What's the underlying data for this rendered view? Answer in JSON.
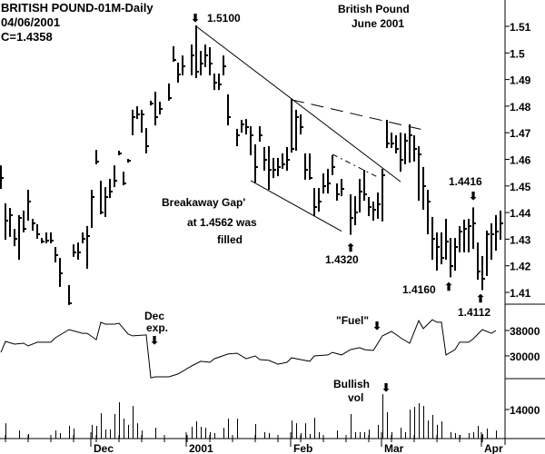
{
  "header": {
    "title": "BRITISH POUND-01M-Daily",
    "date": "04/06/2001",
    "close": "C=1.4358",
    "subtitle_line1": "British Pound",
    "subtitle_line2": "June 2001"
  },
  "annotations": {
    "peak": "1.5100",
    "gap_line1": "Breakaway Gap'",
    "gap_line2": "at 1.4562 was",
    "gap_line3": "filled",
    "low1": "1.4320",
    "high2": "1.4416",
    "low2": "1.4160",
    "low3": "1.4112",
    "dec_exp_line1": "Dec",
    "dec_exp_line2": "exp.",
    "fuel": "\"Fuel\"",
    "bullish_line1": "Bullish",
    "bullish_line2": "vol"
  },
  "chart_data": {
    "type": "ohlc-bar",
    "colors": {
      "bars": "#000000",
      "background": "#ffffff"
    },
    "grid": false,
    "price_axis": {
      "ticks": [
        "1.41",
        "1.42",
        "1.43",
        "1.44",
        "1.45",
        "1.46",
        "1.47",
        "1.48",
        "1.49",
        "1.5",
        "1.51"
      ],
      "ylim": [
        1.403,
        1.52
      ]
    },
    "oi_axis": {
      "ticks": [
        "30000",
        "38000"
      ]
    },
    "volume_axis": {
      "ticks": [
        "14000"
      ]
    },
    "x_ticks": [
      {
        "date": "2000-12-01",
        "label": "Dec"
      },
      {
        "date": "2001-01-01",
        "label": "2001"
      },
      {
        "date": "2001-02-01",
        "label": "Feb"
      },
      {
        "date": "2001-03-01",
        "label": "Mar"
      },
      {
        "date": "2001-04-02",
        "label": "Apr"
      }
    ],
    "bars_columns": [
      "date",
      "high",
      "low",
      "close"
    ],
    "bars": [
      [
        "2000-11-03",
        1.4574,
        1.4492,
        1.453
      ],
      [
        "2000-11-06",
        1.4431,
        1.4301,
        1.437
      ],
      [
        "2000-11-07",
        1.4414,
        1.4312,
        1.439
      ],
      [
        "2000-11-08",
        1.4335,
        1.4277,
        1.43
      ],
      [
        "2000-11-09",
        1.4387,
        1.4226,
        1.438
      ],
      [
        "2000-11-10",
        1.4404,
        1.4329,
        1.434
      ],
      [
        "2000-11-13",
        1.4482,
        1.4373,
        1.444
      ],
      [
        "2000-11-14",
        1.4373,
        1.4335,
        1.436
      ],
      [
        "2000-11-15",
        1.4353,
        1.4305,
        1.432
      ],
      [
        "2000-11-16",
        1.4301,
        1.4288,
        1.429
      ],
      [
        "2000-11-17",
        1.4322,
        1.4288,
        1.4295
      ],
      [
        "2000-11-20",
        1.4322,
        1.4288,
        1.4295
      ],
      [
        "2000-11-21",
        1.4267,
        1.4216,
        1.424
      ],
      [
        "2000-11-22",
        1.4226,
        1.4124,
        1.417
      ],
      [
        "2000-11-24",
        1.4124,
        1.4056,
        1.406
      ],
      [
        "2000-11-27",
        1.4277,
        1.4237,
        1.425
      ],
      [
        "2000-11-28",
        1.4284,
        1.4226,
        1.425
      ],
      [
        "2000-11-29",
        1.4322,
        1.4288,
        1.43
      ],
      [
        "2000-11-30",
        1.4346,
        1.4192,
        1.431
      ],
      [
        "2000-12-01",
        1.4482,
        1.4346,
        1.446
      ],
      [
        "2000-12-04",
        1.4632,
        1.4585,
        1.459
      ],
      [
        "2000-12-05",
        1.4516,
        1.4397,
        1.44
      ],
      [
        "2000-12-06",
        1.4492,
        1.4387,
        1.446
      ],
      [
        "2000-12-07",
        1.4523,
        1.4458,
        1.448
      ],
      [
        "2000-12-08",
        1.4574,
        1.4499,
        1.452
      ],
      [
        "2000-12-11",
        1.4629,
        1.4619,
        1.4622
      ],
      [
        "2000-12-12",
        1.455,
        1.4506,
        1.451
      ],
      [
        "2000-12-13",
        1.4598,
        1.4591,
        1.4595
      ],
      [
        "2000-12-14",
        1.4783,
        1.4694,
        1.476
      ],
      [
        "2000-12-15",
        1.4796,
        1.4755,
        1.477
      ],
      [
        "2000-12-18",
        1.4783,
        1.4704,
        1.477
      ],
      [
        "2000-12-19",
        1.4714,
        1.4626,
        1.465
      ],
      [
        "2000-12-20",
        1.4817,
        1.4806,
        1.481
      ],
      [
        "2000-12-21",
        1.4851,
        1.4731,
        1.476
      ],
      [
        "2000-12-22",
        1.4813,
        1.4772,
        1.479
      ],
      [
        "2000-12-26",
        1.4882,
        1.4824,
        1.483
      ],
      [
        "2000-12-27",
        1.5022,
        1.497,
        1.4975
      ],
      [
        "2000-12-28",
        1.496,
        1.4892,
        1.492
      ],
      [
        "2000-12-29",
        1.4987,
        1.4919,
        1.495
      ],
      [
        "2001-01-02",
        1.5028,
        1.4919,
        1.499
      ],
      [
        "2001-01-03",
        1.51,
        1.4909,
        1.493
      ],
      [
        "2001-01-04",
        1.5004,
        1.4919,
        1.496
      ],
      [
        "2001-01-05",
        1.5028,
        1.495,
        1.499
      ],
      [
        "2001-01-08",
        1.5018,
        1.4919,
        1.496
      ],
      [
        "2001-01-09",
        1.4919,
        1.4864,
        1.489
      ],
      [
        "2001-01-10",
        1.4919,
        1.4864,
        1.488
      ],
      [
        "2001-01-11",
        1.4987,
        1.4919,
        1.495
      ],
      [
        "2001-01-12",
        1.4841,
        1.4731,
        1.476
      ],
      [
        "2001-01-16",
        1.4711,
        1.4653,
        1.469
      ],
      [
        "2001-01-17",
        1.4745,
        1.4704,
        1.473
      ],
      [
        "2001-01-18",
        1.4748,
        1.4697,
        1.472
      ],
      [
        "2001-01-19",
        1.4721,
        1.4619,
        1.469
      ],
      [
        "2001-01-22",
        1.4653,
        1.4516,
        1.457
      ],
      [
        "2001-01-23",
        1.4721,
        1.467,
        1.469
      ],
      [
        "2001-01-24",
        1.4643,
        1.4561,
        1.46
      ],
      [
        "2001-01-25",
        1.4646,
        1.4489,
        1.456
      ],
      [
        "2001-01-26",
        1.4602,
        1.4533,
        1.456
      ],
      [
        "2001-01-29",
        1.4602,
        1.454,
        1.457
      ],
      [
        "2001-01-30",
        1.4619,
        1.4568,
        1.458
      ],
      [
        "2001-01-31",
        1.4643,
        1.4561,
        1.46
      ],
      [
        "2001-02-01",
        1.4824,
        1.4629,
        1.464
      ],
      [
        "2001-02-02",
        1.4783,
        1.4636,
        1.476
      ],
      [
        "2001-02-05",
        1.4766,
        1.4697,
        1.472
      ],
      [
        "2001-02-06",
        1.4619,
        1.4527,
        1.456
      ],
      [
        "2001-02-07",
        1.4619,
        1.4527,
        1.453
      ],
      [
        "2001-02-08",
        1.4489,
        1.439,
        1.442
      ],
      [
        "2001-02-09",
        1.4489,
        1.4407,
        1.444
      ],
      [
        "2001-02-12",
        1.4544,
        1.4475,
        1.45
      ],
      [
        "2001-02-13",
        1.4561,
        1.4475,
        1.451
      ],
      [
        "2001-02-14",
        1.4612,
        1.4544,
        1.457
      ],
      [
        "2001-02-15",
        1.4506,
        1.4448,
        1.447
      ],
      [
        "2001-02-16",
        1.4523,
        1.4465,
        1.449
      ],
      [
        "2001-02-20",
        1.4465,
        1.432,
        1.438
      ],
      [
        "2001-02-21",
        1.4458,
        1.4356,
        1.44
      ],
      [
        "2001-02-22",
        1.4523,
        1.4404,
        1.448
      ],
      [
        "2001-02-23",
        1.4557,
        1.4448,
        1.447
      ],
      [
        "2001-02-26",
        1.4455,
        1.439,
        1.442
      ],
      [
        "2001-02-27",
        1.4438,
        1.4373,
        1.441
      ],
      [
        "2001-02-28",
        1.4472,
        1.438,
        1.443
      ],
      [
        "2001-03-01",
        1.4561,
        1.437,
        1.454
      ],
      [
        "2001-03-02",
        1.4745,
        1.4646,
        1.466
      ],
      [
        "2001-03-05",
        1.4697,
        1.4646,
        1.466
      ],
      [
        "2001-03-06",
        1.4687,
        1.4626,
        1.464
      ],
      [
        "2001-03-07",
        1.4697,
        1.4557,
        1.46
      ],
      [
        "2001-03-08",
        1.4694,
        1.4585,
        1.467
      ],
      [
        "2001-03-09",
        1.4728,
        1.4591,
        1.469
      ],
      [
        "2001-03-12",
        1.4687,
        1.4595,
        1.464
      ],
      [
        "2001-03-13",
        1.4646,
        1.4448,
        1.462
      ],
      [
        "2001-03-14",
        1.4568,
        1.4414,
        1.45
      ],
      [
        "2001-03-15",
        1.4482,
        1.4322,
        1.444
      ],
      [
        "2001-03-16",
        1.438,
        1.4226,
        1.43
      ],
      [
        "2001-03-19",
        1.4322,
        1.4185,
        1.427
      ],
      [
        "2001-03-20",
        1.4322,
        1.4209,
        1.423
      ],
      [
        "2001-03-21",
        1.4373,
        1.4226,
        1.429
      ],
      [
        "2001-03-22",
        1.4301,
        1.416,
        1.42
      ],
      [
        "2001-03-23",
        1.4301,
        1.4185,
        1.427
      ],
      [
        "2001-03-26",
        1.4346,
        1.4254,
        1.433
      ],
      [
        "2001-03-27",
        1.437,
        1.4254,
        1.434
      ],
      [
        "2001-03-28",
        1.4373,
        1.4254,
        1.435
      ],
      [
        "2001-03-29",
        1.4416,
        1.4267,
        1.436
      ],
      [
        "2001-03-30",
        1.4284,
        1.4151,
        1.418
      ],
      [
        "2001-04-02",
        1.4233,
        1.4112,
        1.415
      ],
      [
        "2001-04-03",
        1.4329,
        1.4165,
        1.432
      ],
      [
        "2001-04-04",
        1.4356,
        1.4226,
        1.432
      ],
      [
        "2001-04-05",
        1.4387,
        1.426,
        1.433
      ],
      [
        "2001-04-06",
        1.4404,
        1.4301,
        1.4358
      ]
    ],
    "open_interest": [
      [
        "2000-11-03",
        31100
      ],
      [
        "2000-11-06",
        34570
      ],
      [
        "2000-11-08",
        33700
      ],
      [
        "2000-11-10",
        34000
      ],
      [
        "2000-11-13",
        33140
      ],
      [
        "2000-11-15",
        34300
      ],
      [
        "2000-11-20",
        34300
      ],
      [
        "2000-11-21",
        35700
      ],
      [
        "2000-11-24",
        38300
      ],
      [
        "2000-11-29",
        37100
      ],
      [
        "2000-11-30",
        37100
      ],
      [
        "2000-12-04",
        35100
      ],
      [
        "2000-12-05",
        40600
      ],
      [
        "2000-12-06",
        40000
      ],
      [
        "2000-12-08",
        40000
      ],
      [
        "2000-12-11",
        40300
      ],
      [
        "2000-12-13",
        36900
      ],
      [
        "2000-12-14",
        36300
      ],
      [
        "2000-12-19",
        36600
      ],
      [
        "2000-12-20",
        23100
      ],
      [
        "2000-12-21",
        23400
      ],
      [
        "2000-12-26",
        23400
      ],
      [
        "2000-12-28",
        24300
      ],
      [
        "2001-01-02",
        26850
      ],
      [
        "2001-01-04",
        28300
      ],
      [
        "2001-01-08",
        28000
      ],
      [
        "2001-01-09",
        29100
      ],
      [
        "2001-01-12",
        30600
      ],
      [
        "2001-01-16",
        30850
      ],
      [
        "2001-01-18",
        29100
      ],
      [
        "2001-01-22",
        30000
      ],
      [
        "2001-01-23",
        28850
      ],
      [
        "2001-01-25",
        28600
      ],
      [
        "2001-01-29",
        27400
      ],
      [
        "2001-01-31",
        28000
      ],
      [
        "2001-02-01",
        29400
      ],
      [
        "2001-02-05",
        28850
      ],
      [
        "2001-02-07",
        28300
      ],
      [
        "2001-02-08",
        30000
      ],
      [
        "2001-02-13",
        30300
      ],
      [
        "2001-02-14",
        31100
      ],
      [
        "2001-02-16",
        30300
      ],
      [
        "2001-02-20",
        32000
      ],
      [
        "2001-02-22",
        32600
      ],
      [
        "2001-02-23",
        32000
      ],
      [
        "2001-02-27",
        31700
      ],
      [
        "2001-03-01",
        36300
      ],
      [
        "2001-03-05",
        37700
      ],
      [
        "2001-03-07",
        35700
      ],
      [
        "2001-03-09",
        34000
      ],
      [
        "2001-03-13",
        41100
      ],
      [
        "2001-03-14",
        38600
      ],
      [
        "2001-03-16",
        41400
      ],
      [
        "2001-03-19",
        40600
      ],
      [
        "2001-03-20",
        40600
      ],
      [
        "2001-03-21",
        30300
      ],
      [
        "2001-03-23",
        32000
      ],
      [
        "2001-03-26",
        34300
      ],
      [
        "2001-03-28",
        34300
      ],
      [
        "2001-03-29",
        35400
      ],
      [
        "2001-04-02",
        38300
      ],
      [
        "2001-04-04",
        37100
      ],
      [
        "2001-04-05",
        38000
      ]
    ],
    "volume": [
      [
        "2000-11-06",
        7400
      ],
      [
        "2000-11-09",
        3900
      ],
      [
        "2000-11-13",
        2200
      ],
      [
        "2000-11-21",
        3900
      ],
      [
        "2000-11-22",
        2600
      ],
      [
        "2000-11-24",
        6100
      ],
      [
        "2000-11-27",
        4800
      ],
      [
        "2000-12-01",
        6600
      ],
      [
        "2000-12-04",
        6100
      ],
      [
        "2000-12-05",
        12200
      ],
      [
        "2000-12-06",
        4400
      ],
      [
        "2000-12-07",
        4400
      ],
      [
        "2000-12-08",
        11800
      ],
      [
        "2000-12-11",
        17500
      ],
      [
        "2000-12-12",
        9600
      ],
      [
        "2000-12-13",
        6600
      ],
      [
        "2000-12-14",
        15700
      ],
      [
        "2000-12-15",
        7400
      ],
      [
        "2000-12-18",
        3900
      ],
      [
        "2000-12-21",
        5200
      ],
      [
        "2001-01-02",
        5700
      ],
      [
        "2001-01-03",
        8300
      ],
      [
        "2001-01-04",
        5700
      ],
      [
        "2001-01-05",
        5200
      ],
      [
        "2001-01-08",
        3100
      ],
      [
        "2001-01-09",
        2600
      ],
      [
        "2001-01-11",
        5200
      ],
      [
        "2001-01-12",
        9600
      ],
      [
        "2001-01-16",
        9600
      ],
      [
        "2001-01-22",
        7000
      ],
      [
        "2001-01-24",
        3100
      ],
      [
        "2001-01-25",
        2600
      ],
      [
        "2001-02-01",
        8700
      ],
      [
        "2001-02-02",
        7400
      ],
      [
        "2001-02-05",
        2600
      ],
      [
        "2001-02-06",
        7400
      ],
      [
        "2001-02-07",
        2200
      ],
      [
        "2001-02-08",
        10000
      ],
      [
        "2001-02-09",
        3100
      ],
      [
        "2001-02-15",
        3900
      ],
      [
        "2001-02-20",
        11800
      ],
      [
        "2001-02-21",
        3100
      ],
      [
        "2001-02-22",
        3100
      ],
      [
        "2001-02-23",
        3100
      ],
      [
        "2001-02-26",
        4400
      ],
      [
        "2001-02-28",
        6600
      ],
      [
        "2001-03-01",
        21400
      ],
      [
        "2001-03-02",
        12700
      ],
      [
        "2001-03-05",
        3100
      ],
      [
        "2001-03-07",
        5200
      ],
      [
        "2001-03-08",
        3100
      ],
      [
        "2001-03-09",
        14000
      ],
      [
        "2001-03-12",
        15300
      ],
      [
        "2001-03-13",
        17000
      ],
      [
        "2001-03-14",
        15700
      ],
      [
        "2001-03-15",
        8700
      ],
      [
        "2001-03-16",
        11400
      ],
      [
        "2001-03-19",
        6600
      ],
      [
        "2001-03-20",
        8300
      ],
      [
        "2001-03-22",
        3100
      ],
      [
        "2001-03-23",
        2600
      ],
      [
        "2001-03-26",
        1700
      ],
      [
        "2001-03-28",
        2600
      ],
      [
        "2001-03-29",
        3100
      ],
      [
        "2001-03-30",
        6100
      ],
      [
        "2001-04-02",
        2200
      ],
      [
        "2001-04-03",
        4800
      ],
      [
        "2001-04-05",
        3900
      ]
    ],
    "trendlines": [
      {
        "style": "solid",
        "from": [
          "2001-01-03",
          1.51
        ],
        "to": [
          "2001-03-07",
          1.4516
        ]
      },
      {
        "style": "dashed",
        "from": [
          "2001-02-01",
          1.4824
        ],
        "to": [
          "2001-03-14",
          1.4711
        ]
      },
      {
        "style": "solid",
        "from": [
          "2001-01-19",
          1.452
        ],
        "to": [
          "2001-02-16",
          1.433
        ]
      },
      {
        "style": "dashdot",
        "from": [
          "2001-02-14",
          1.4619
        ],
        "to": [
          "2001-02-28",
          1.4533
        ]
      }
    ]
  }
}
